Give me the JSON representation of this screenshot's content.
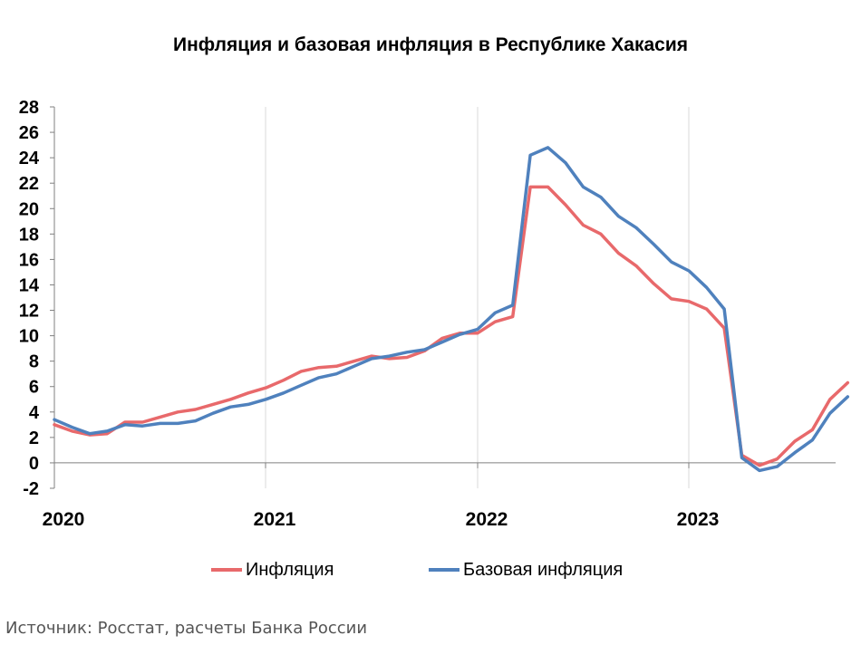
{
  "chart_data": {
    "type": "line",
    "title": "Инфляция и базовая инфляция в Республике Хакасия",
    "xlabel": "",
    "ylabel": "",
    "x_ticks": [
      "2020",
      "2021",
      "2022",
      "2023"
    ],
    "x_start": "2020-01",
    "ylim": [
      -2,
      28
    ],
    "y_ticks": [
      -2,
      0,
      2,
      4,
      6,
      8,
      10,
      12,
      14,
      16,
      18,
      20,
      22,
      24,
      26,
      28
    ],
    "grid": "vertical-at-years",
    "legend_position": "bottom",
    "series": [
      {
        "name": "Инфляция",
        "color": "#e8696b",
        "values": [
          3.0,
          2.5,
          2.2,
          2.3,
          3.2,
          3.2,
          3.6,
          4.0,
          4.2,
          4.6,
          5.0,
          5.5,
          5.9,
          6.5,
          7.2,
          7.5,
          7.6,
          8.0,
          8.4,
          8.2,
          8.3,
          8.8,
          9.8,
          10.2,
          10.2,
          11.1,
          11.5,
          21.7,
          21.7,
          20.3,
          18.7,
          18.0,
          16.5,
          15.5,
          14.1,
          12.9,
          12.7,
          12.1,
          10.6,
          0.6,
          -0.2,
          0.3,
          1.7,
          2.6,
          5.0,
          6.3
        ]
      },
      {
        "name": "Базовая инфляция",
        "color": "#4f81bd",
        "values": [
          3.4,
          2.8,
          2.3,
          2.5,
          3.0,
          2.9,
          3.1,
          3.1,
          3.3,
          3.9,
          4.4,
          4.6,
          5.0,
          5.5,
          6.1,
          6.7,
          7.0,
          7.6,
          8.2,
          8.4,
          8.7,
          8.9,
          9.5,
          10.1,
          10.5,
          11.8,
          12.4,
          24.2,
          24.8,
          23.6,
          21.7,
          20.9,
          19.4,
          18.5,
          17.2,
          15.8,
          15.1,
          13.8,
          12.1,
          0.4,
          -0.6,
          -0.3,
          0.8,
          1.8,
          3.9,
          5.2
        ]
      }
    ]
  },
  "source_note": "Источник: Росстат, расчеты Банка России"
}
